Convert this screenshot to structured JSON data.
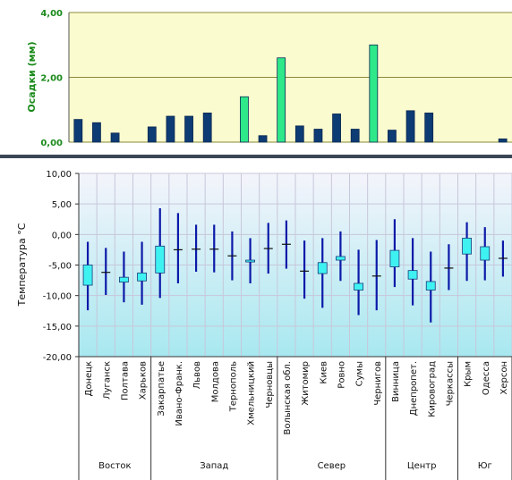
{
  "chart_data": [
    {
      "type": "bar",
      "ylabel": "Осадки (мм)",
      "ylim": [
        0,
        4
      ],
      "yticks": [
        "0,00",
        "2,00",
        "4,00"
      ],
      "categories": [
        "Донецк",
        "Луганск",
        "Полтава",
        "Харьков",
        "Закарпатье",
        "Ивано-Франк.",
        "Львов",
        "Молдова",
        "Тернополь",
        "Хмельницкий",
        "Черновцы",
        "Волынская обл.",
        "Житомир",
        "Киев",
        "Ровно",
        "Сумы",
        "Чернигов",
        "Винница",
        "Днепропет.",
        "Кировоград",
        "Черкассы",
        "Крым",
        "Одесса",
        "Херсон"
      ],
      "values": [
        0.7,
        0.6,
        0.28,
        0.0,
        0.47,
        0.8,
        0.8,
        0.9,
        0.0,
        1.4,
        0.2,
        2.6,
        0.5,
        0.4,
        0.87,
        0.4,
        3.0,
        0.37,
        0.97,
        0.9,
        0.0,
        0.0,
        0.0,
        0.1
      ],
      "highlight": [
        false,
        false,
        false,
        false,
        false,
        false,
        false,
        false,
        false,
        true,
        false,
        true,
        false,
        false,
        false,
        false,
        true,
        false,
        false,
        false,
        false,
        false,
        false,
        false
      ],
      "colors": {
        "normal": "#0d3b73",
        "highlight": "#2ee88a",
        "background": "#fbfbd0",
        "grid": "#8a8a3a"
      },
      "grid": true
    },
    {
      "type": "candlestick",
      "ylabel": "Температура  °С",
      "ylim": [
        -20,
        10
      ],
      "yticks": [
        "10,00",
        "5,00",
        "0,00",
        "-5,00",
        "-10,00",
        "-15,00",
        "-20,00"
      ],
      "categories": [
        "Донецк",
        "Луганск",
        "Полтава",
        "Харьков",
        "Закарпатье",
        "Ивано-Франк.",
        "Львов",
        "Молдова",
        "Тернополь",
        "Хмельницкий",
        "Черновцы",
        "Волынская обл.",
        "Житомир",
        "Киев",
        "Ровно",
        "Сумы",
        "Чернигов",
        "Винница",
        "Днепропет.",
        "Кировоград",
        "Черкассы",
        "Крым",
        "Одесса",
        "Херсон"
      ],
      "high": [
        -1.2,
        -2.2,
        -2.8,
        -1.2,
        4.3,
        3.5,
        1.6,
        1.6,
        0.5,
        -0.6,
        1.9,
        2.3,
        -1.0,
        -0.6,
        0.5,
        -2.5,
        -0.9,
        2.5,
        -0.6,
        -2.8,
        -1.6,
        2.0,
        1.2,
        -1.0
      ],
      "low": [
        -12.4,
        -9.9,
        -11.1,
        -11.5,
        -10.4,
        -8.0,
        -6.1,
        -6.2,
        -7.5,
        -8.0,
        -6.4,
        -5.6,
        -10.5,
        -12.0,
        -7.6,
        -13.2,
        -12.4,
        -8.6,
        -11.6,
        -14.4,
        -9.1,
        -7.6,
        -7.5,
        -6.9
      ],
      "open": [
        -5.0,
        -6.2,
        -7.0,
        -6.3,
        -1.9,
        -2.5,
        -2.4,
        -2.4,
        -3.5,
        -4.2,
        -2.3,
        -1.6,
        -6.0,
        -4.6,
        -3.6,
        -8.0,
        -6.8,
        -2.6,
        -5.9,
        -7.7,
        -5.5,
        -0.6,
        -2.0,
        -3.9
      ],
      "close": [
        -8.3,
        -6.2,
        -7.8,
        -7.6,
        -6.3,
        -2.5,
        -2.4,
        -2.4,
        -3.5,
        -4.5,
        -2.3,
        -1.6,
        -6.0,
        -6.4,
        -4.2,
        -9.1,
        -6.8,
        -5.3,
        -7.3,
        -9.1,
        -5.5,
        -3.2,
        -4.2,
        -3.9
      ],
      "groups": [
        {
          "name": "Восток",
          "start": 0,
          "end": 3
        },
        {
          "name": "Запад",
          "start": 4,
          "end": 10
        },
        {
          "name": "Север",
          "start": 11,
          "end": 16
        },
        {
          "name": "Центр",
          "start": 17,
          "end": 20
        },
        {
          "name": "Юг",
          "start": 21,
          "end": 23
        }
      ],
      "colors": {
        "wick": "#0b1aa8",
        "body": "#3ff2f2",
        "body_stroke": "#1a3a7a",
        "bg_top": "#f4f4fb",
        "bg_bottom": "#a8e8f0",
        "grid": "#c7c7da"
      },
      "grid": true
    }
  ]
}
